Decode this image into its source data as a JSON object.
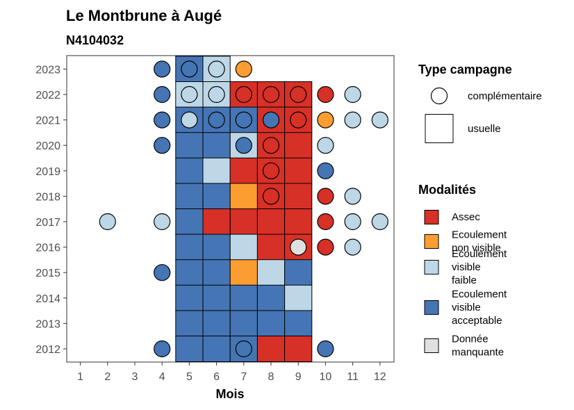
{
  "chart_data": {
    "type": "heatmap",
    "title": "Le Montbrune à Augé",
    "subtitle": "N4104032",
    "xlabel": "Mois",
    "ylabel": "",
    "x_ticks": [
      1,
      2,
      3,
      4,
      5,
      6,
      7,
      8,
      9,
      10,
      11,
      12
    ],
    "y_ticks": [
      2012,
      2013,
      2014,
      2015,
      2016,
      2017,
      2018,
      2019,
      2020,
      2021,
      2022,
      2023
    ],
    "colors": {
      "Assec": "#d73027",
      "Ecoulement non visible": "#fc9d32",
      "Ecoulement visible faible": "#bdd7e7",
      "Ecoulement visible acceptable": "#4575b4",
      "Donnée manquante": "#e0e0e0"
    },
    "legend_type": {
      "title": "Type campagne",
      "items": [
        {
          "key": "complémentaire",
          "label": "complémentaire",
          "shape": "circle"
        },
        {
          "key": "usuelle",
          "label": "usuelle",
          "shape": "square"
        }
      ]
    },
    "legend_modalites": {
      "title": "Modalités",
      "items": [
        {
          "key": "Assec",
          "lines": [
            "Assec"
          ]
        },
        {
          "key": "Ecoulement non visible",
          "lines": [
            "Ecoulement",
            "non visible"
          ]
        },
        {
          "key": "Ecoulement visible faible",
          "lines": [
            "Ecoulement",
            "visible",
            "faible"
          ]
        },
        {
          "key": "Ecoulement visible acceptable",
          "lines": [
            "Ecoulement",
            "visible",
            "acceptable"
          ]
        },
        {
          "key": "Donnée manquante",
          "lines": [
            "Donnée",
            "manquante"
          ]
        }
      ]
    },
    "usuelle": [
      {
        "year": 2023,
        "month": 5,
        "modalite": "Ecoulement visible acceptable"
      },
      {
        "year": 2023,
        "month": 6,
        "modalite": "Ecoulement visible faible"
      },
      {
        "year": 2022,
        "month": 5,
        "modalite": "Ecoulement visible faible"
      },
      {
        "year": 2022,
        "month": 6,
        "modalite": "Ecoulement visible faible"
      },
      {
        "year": 2022,
        "month": 7,
        "modalite": "Assec"
      },
      {
        "year": 2022,
        "month": 8,
        "modalite": "Assec"
      },
      {
        "year": 2022,
        "month": 9,
        "modalite": "Assec"
      },
      {
        "year": 2021,
        "month": 5,
        "modalite": "Ecoulement visible acceptable"
      },
      {
        "year": 2021,
        "month": 6,
        "modalite": "Ecoulement visible acceptable"
      },
      {
        "year": 2021,
        "month": 7,
        "modalite": "Ecoulement visible acceptable"
      },
      {
        "year": 2021,
        "month": 8,
        "modalite": "Assec"
      },
      {
        "year": 2021,
        "month": 9,
        "modalite": "Assec"
      },
      {
        "year": 2020,
        "month": 5,
        "modalite": "Ecoulement visible acceptable"
      },
      {
        "year": 2020,
        "month": 6,
        "modalite": "Ecoulement visible acceptable"
      },
      {
        "year": 2020,
        "month": 7,
        "modalite": "Ecoulement visible faible"
      },
      {
        "year": 2020,
        "month": 8,
        "modalite": "Assec"
      },
      {
        "year": 2020,
        "month": 9,
        "modalite": "Assec"
      },
      {
        "year": 2019,
        "month": 5,
        "modalite": "Ecoulement visible acceptable"
      },
      {
        "year": 2019,
        "month": 6,
        "modalite": "Ecoulement visible faible"
      },
      {
        "year": 2019,
        "month": 7,
        "modalite": "Assec"
      },
      {
        "year": 2019,
        "month": 8,
        "modalite": "Assec"
      },
      {
        "year": 2019,
        "month": 9,
        "modalite": "Assec"
      },
      {
        "year": 2018,
        "month": 5,
        "modalite": "Ecoulement visible acceptable"
      },
      {
        "year": 2018,
        "month": 6,
        "modalite": "Ecoulement visible acceptable"
      },
      {
        "year": 2018,
        "month": 7,
        "modalite": "Ecoulement non visible"
      },
      {
        "year": 2018,
        "month": 8,
        "modalite": "Assec"
      },
      {
        "year": 2018,
        "month": 9,
        "modalite": "Assec"
      },
      {
        "year": 2017,
        "month": 5,
        "modalite": "Ecoulement visible acceptable"
      },
      {
        "year": 2017,
        "month": 6,
        "modalite": "Assec"
      },
      {
        "year": 2017,
        "month": 7,
        "modalite": "Assec"
      },
      {
        "year": 2017,
        "month": 8,
        "modalite": "Assec"
      },
      {
        "year": 2017,
        "month": 9,
        "modalite": "Assec"
      },
      {
        "year": 2016,
        "month": 5,
        "modalite": "Ecoulement visible acceptable"
      },
      {
        "year": 2016,
        "month": 6,
        "modalite": "Ecoulement visible acceptable"
      },
      {
        "year": 2016,
        "month": 7,
        "modalite": "Ecoulement visible faible"
      },
      {
        "year": 2016,
        "month": 8,
        "modalite": "Assec"
      },
      {
        "year": 2016,
        "month": 9,
        "modalite": "Assec"
      },
      {
        "year": 2015,
        "month": 5,
        "modalite": "Ecoulement visible acceptable"
      },
      {
        "year": 2015,
        "month": 6,
        "modalite": "Ecoulement visible acceptable"
      },
      {
        "year": 2015,
        "month": 7,
        "modalite": "Ecoulement non visible"
      },
      {
        "year": 2015,
        "month": 8,
        "modalite": "Ecoulement visible faible"
      },
      {
        "year": 2015,
        "month": 9,
        "modalite": "Ecoulement visible acceptable"
      },
      {
        "year": 2014,
        "month": 5,
        "modalite": "Ecoulement visible acceptable"
      },
      {
        "year": 2014,
        "month": 6,
        "modalite": "Ecoulement visible acceptable"
      },
      {
        "year": 2014,
        "month": 7,
        "modalite": "Ecoulement visible acceptable"
      },
      {
        "year": 2014,
        "month": 8,
        "modalite": "Ecoulement visible acceptable"
      },
      {
        "year": 2014,
        "month": 9,
        "modalite": "Ecoulement visible faible"
      },
      {
        "year": 2013,
        "month": 5,
        "modalite": "Ecoulement visible acceptable"
      },
      {
        "year": 2013,
        "month": 6,
        "modalite": "Ecoulement visible acceptable"
      },
      {
        "year": 2013,
        "month": 7,
        "modalite": "Ecoulement visible acceptable"
      },
      {
        "year": 2013,
        "month": 8,
        "modalite": "Ecoulement visible acceptable"
      },
      {
        "year": 2013,
        "month": 9,
        "modalite": "Ecoulement visible acceptable"
      },
      {
        "year": 2012,
        "month": 5,
        "modalite": "Ecoulement visible acceptable"
      },
      {
        "year": 2012,
        "month": 6,
        "modalite": "Ecoulement visible acceptable"
      },
      {
        "year": 2012,
        "month": 7,
        "modalite": "Ecoulement visible acceptable"
      },
      {
        "year": 2012,
        "month": 8,
        "modalite": "Assec"
      },
      {
        "year": 2012,
        "month": 9,
        "modalite": "Assec"
      }
    ],
    "complementaire": [
      {
        "year": 2023,
        "month": 4,
        "modalite": "Ecoulement visible acceptable"
      },
      {
        "year": 2023,
        "month": 5,
        "modalite": "Ecoulement visible acceptable"
      },
      {
        "year": 2023,
        "month": 6,
        "modalite": "Ecoulement visible faible"
      },
      {
        "year": 2023,
        "month": 7,
        "modalite": "Ecoulement non visible"
      },
      {
        "year": 2022,
        "month": 4,
        "modalite": "Ecoulement visible acceptable"
      },
      {
        "year": 2022,
        "month": 5,
        "modalite": "Ecoulement visible faible"
      },
      {
        "year": 2022,
        "month": 6,
        "modalite": "Ecoulement visible faible"
      },
      {
        "year": 2022,
        "month": 7,
        "modalite": "Assec"
      },
      {
        "year": 2022,
        "month": 8,
        "modalite": "Assec"
      },
      {
        "year": 2022,
        "month": 9,
        "modalite": "Assec"
      },
      {
        "year": 2022,
        "month": 10,
        "modalite": "Assec"
      },
      {
        "year": 2022,
        "month": 11,
        "modalite": "Ecoulement visible faible"
      },
      {
        "year": 2021,
        "month": 4,
        "modalite": "Ecoulement visible acceptable"
      },
      {
        "year": 2021,
        "month": 5,
        "modalite": "Ecoulement visible faible"
      },
      {
        "year": 2021,
        "month": 6,
        "modalite": "Ecoulement visible acceptable"
      },
      {
        "year": 2021,
        "month": 7,
        "modalite": "Ecoulement visible acceptable"
      },
      {
        "year": 2021,
        "month": 8,
        "modalite": "Ecoulement visible acceptable"
      },
      {
        "year": 2021,
        "month": 9,
        "modalite": "Assec"
      },
      {
        "year": 2021,
        "month": 10,
        "modalite": "Ecoulement non visible"
      },
      {
        "year": 2021,
        "month": 11,
        "modalite": "Ecoulement visible faible"
      },
      {
        "year": 2021,
        "month": 12,
        "modalite": "Ecoulement visible faible"
      },
      {
        "year": 2020,
        "month": 4,
        "modalite": "Ecoulement visible acceptable"
      },
      {
        "year": 2020,
        "month": 7,
        "modalite": "Ecoulement visible acceptable"
      },
      {
        "year": 2020,
        "month": 8,
        "modalite": "Assec"
      },
      {
        "year": 2020,
        "month": 10,
        "modalite": "Ecoulement visible faible"
      },
      {
        "year": 2019,
        "month": 8,
        "modalite": "Assec"
      },
      {
        "year": 2019,
        "month": 10,
        "modalite": "Ecoulement visible acceptable"
      },
      {
        "year": 2018,
        "month": 8,
        "modalite": "Assec"
      },
      {
        "year": 2018,
        "month": 10,
        "modalite": "Assec"
      },
      {
        "year": 2018,
        "month": 11,
        "modalite": "Ecoulement visible faible"
      },
      {
        "year": 2017,
        "month": 2,
        "modalite": "Ecoulement visible faible"
      },
      {
        "year": 2017,
        "month": 4,
        "modalite": "Ecoulement visible faible"
      },
      {
        "year": 2017,
        "month": 10,
        "modalite": "Assec"
      },
      {
        "year": 2017,
        "month": 11,
        "modalite": "Ecoulement visible faible"
      },
      {
        "year": 2017,
        "month": 12,
        "modalite": "Ecoulement visible faible"
      },
      {
        "year": 2016,
        "month": 9,
        "modalite": "Donnée manquante"
      },
      {
        "year": 2016,
        "month": 10,
        "modalite": "Assec"
      },
      {
        "year": 2016,
        "month": 11,
        "modalite": "Ecoulement visible faible"
      },
      {
        "year": 2015,
        "month": 4,
        "modalite": "Ecoulement visible acceptable"
      },
      {
        "year": 2012,
        "month": 4,
        "modalite": "Ecoulement visible acceptable"
      },
      {
        "year": 2012,
        "month": 7,
        "modalite": "Ecoulement visible acceptable"
      },
      {
        "year": 2012,
        "month": 10,
        "modalite": "Ecoulement visible acceptable"
      }
    ]
  }
}
